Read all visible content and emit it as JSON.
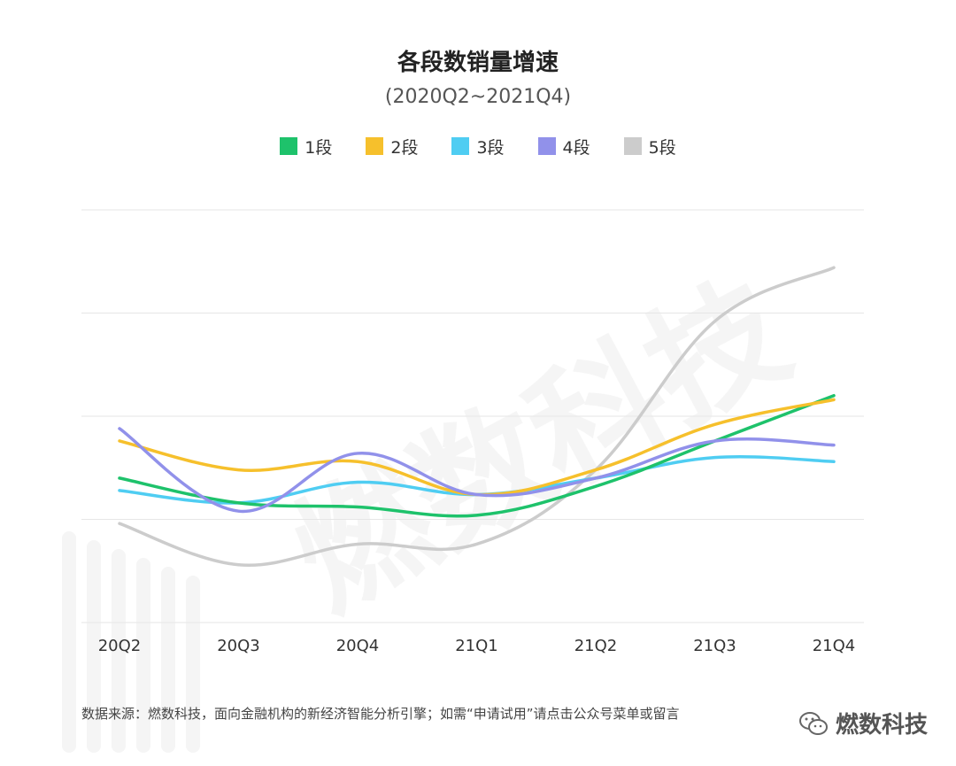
{
  "chart_data": {
    "type": "line",
    "title": "各段数销量增速",
    "subtitle": "(2020Q2~2021Q4)",
    "categories": [
      "20Q2",
      "20Q3",
      "20Q4",
      "21Q1",
      "21Q2",
      "21Q3",
      "21Q4"
    ],
    "ylim": [
      0,
      100
    ],
    "grid": true,
    "legend": "top-center",
    "series": [
      {
        "name": "1段",
        "color": "#1ec26b",
        "values": [
          35,
          29,
          28,
          26,
          33,
          44,
          55
        ]
      },
      {
        "name": "2段",
        "color": "#f6c02c",
        "values": [
          44,
          37,
          39,
          31,
          37,
          48,
          54
        ]
      },
      {
        "name": "3段",
        "color": "#4fcdf2",
        "values": [
          32,
          29,
          34,
          31,
          35,
          40,
          39
        ]
      },
      {
        "name": "4段",
        "color": "#9191ea",
        "values": [
          47,
          27,
          41,
          31,
          35,
          44,
          43
        ]
      },
      {
        "name": "5段",
        "color": "#cccccc",
        "values": [
          24,
          14,
          19,
          19,
          37,
          73,
          86
        ]
      }
    ]
  },
  "footer": {
    "source": "数据来源：燃数科技，面向金融机构的新经济智能分析引擎；如需“申请试用”请点击公众号菜单或留言",
    "brand": "燃数科技"
  }
}
